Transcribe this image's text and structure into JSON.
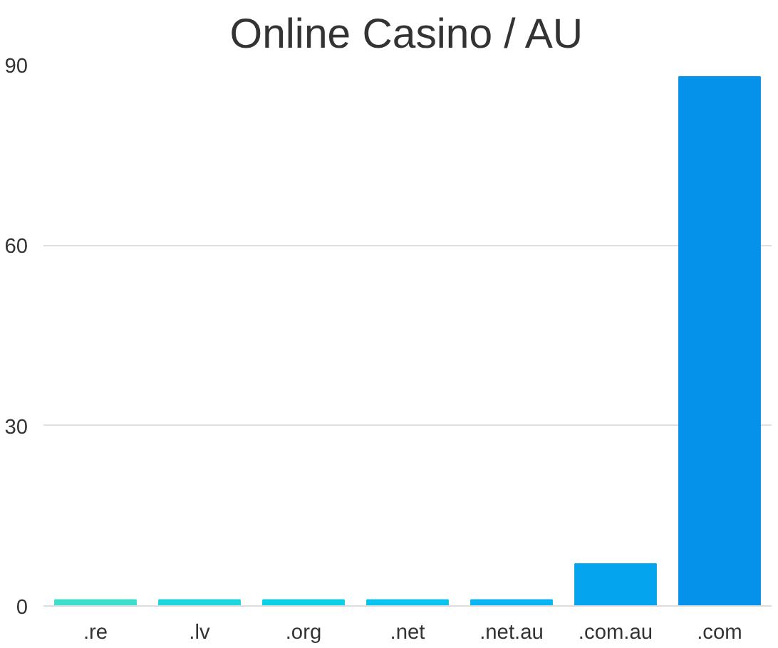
{
  "chart_data": {
    "type": "bar",
    "title": "Online Casino / AU",
    "categories": [
      ".re",
      ".lv",
      ".org",
      ".net",
      ".net.au",
      ".com.au",
      ".com"
    ],
    "values": [
      1,
      1,
      1,
      1,
      1,
      7,
      88
    ],
    "colors": [
      "#3ddfcc",
      "#1cd6dc",
      "#0dcfe6",
      "#0bc3ef",
      "#0ab4f2",
      "#05a4ee",
      "#0592ea"
    ],
    "ylim": [
      0,
      90
    ],
    "yticks": [
      0,
      30,
      60,
      90
    ],
    "grid": "y"
  }
}
